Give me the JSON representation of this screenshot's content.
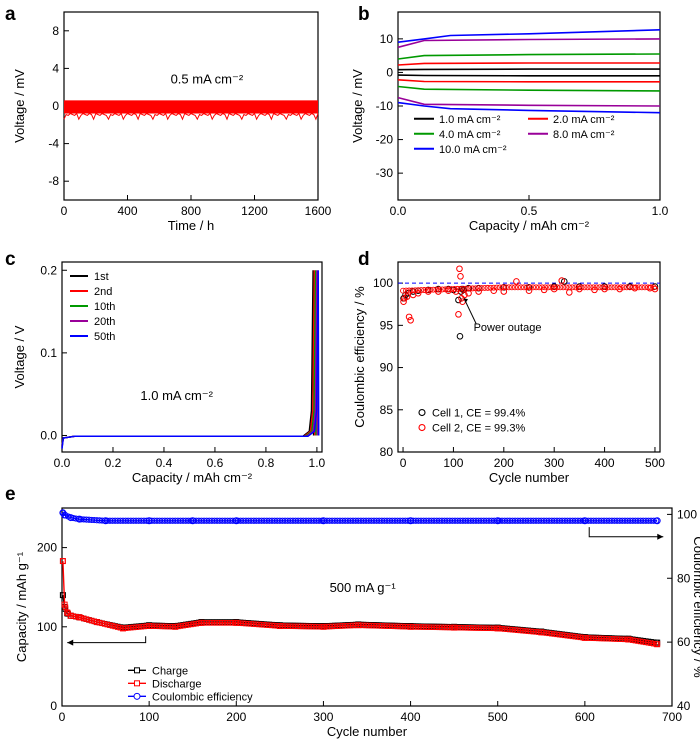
{
  "figure": {
    "panel_letters": [
      "a",
      "b",
      "c",
      "d",
      "e"
    ]
  },
  "chart_data": [
    {
      "panel": "a",
      "type": "line",
      "xlabel": "Time / h",
      "ylabel": "Voltage / mV",
      "xlim": [
        0,
        1600
      ],
      "ylim": [
        -10,
        10
      ],
      "xticks": [
        0,
        400,
        800,
        1200,
        1600
      ],
      "yticks": [
        -8,
        -4,
        0,
        4,
        8
      ],
      "annotation": "0.5 mA cm⁻²",
      "series": [
        {
          "color": "#ff0000",
          "x": [
            0,
            1600
          ],
          "y_upper": [
            0.6,
            0.6
          ],
          "y_lower": [
            -0.8,
            -0.8
          ]
        }
      ]
    },
    {
      "panel": "b",
      "type": "line",
      "xlabel": "Capacity / mAh cm⁻²",
      "ylabel": "Voltage / mV",
      "xlim": [
        0,
        1.0
      ],
      "ylim": [
        -38,
        18
      ],
      "xticks": [
        0,
        0.5,
        1.0
      ],
      "xticklabels": [
        "0.0",
        "0.5",
        "1.0"
      ],
      "yticks": [
        -30,
        -20,
        -10,
        0,
        10
      ],
      "legend_position": "lower-center",
      "series": [
        {
          "name": "1.0 mA cm⁻²",
          "color": "#000000",
          "x": [
            0,
            0.1,
            0.5,
            1.0
          ],
          "y_charge": [
            0.8,
            0.9,
            1.0,
            1.0
          ],
          "y_discharge": [
            -0.8,
            -0.9,
            -1.0,
            -1.0
          ]
        },
        {
          "name": "2.0 mA cm⁻²",
          "color": "#ff0000",
          "x": [
            0,
            0.1,
            0.5,
            1.0
          ],
          "y_charge": [
            2.2,
            2.7,
            2.8,
            2.8
          ],
          "y_discharge": [
            -2.2,
            -2.7,
            -2.8,
            -2.8
          ]
        },
        {
          "name": "4.0 mA cm⁻²",
          "color": "#009900",
          "x": [
            0,
            0.1,
            0.5,
            1.0
          ],
          "y_charge": [
            4.0,
            5.0,
            5.3,
            5.5
          ],
          "y_discharge": [
            -4.2,
            -5.0,
            -5.3,
            -5.5
          ]
        },
        {
          "name": "8.0 mA cm⁻²",
          "color": "#990099",
          "x": [
            0,
            0.1,
            0.5,
            1.0
          ],
          "y_charge": [
            7.5,
            9.5,
            9.8,
            10.0
          ],
          "y_discharge": [
            -7.5,
            -9.5,
            -9.8,
            -10.0
          ]
        },
        {
          "name": "10.0 mA cm⁻²",
          "color": "#0000ff",
          "x": [
            0,
            0.1,
            0.2,
            0.5,
            1.0
          ],
          "y_charge": [
            9.0,
            10.0,
            11.0,
            11.5,
            12.7
          ],
          "y_discharge": [
            -9.0,
            -10.0,
            -10.8,
            -11.3,
            -12.0
          ]
        }
      ]
    },
    {
      "panel": "c",
      "type": "line",
      "xlabel": "Capacity / mAh cm⁻²",
      "ylabel": "Voltage / V",
      "xlim": [
        0,
        1.02
      ],
      "ylim": [
        -0.02,
        0.21
      ],
      "xticks": [
        0,
        0.2,
        0.4,
        0.6,
        0.8,
        1.0
      ],
      "xticklabels": [
        "0.0",
        "0.2",
        "0.4",
        "0.6",
        "0.8",
        "1.0"
      ],
      "yticks": [
        0,
        0.1,
        0.2
      ],
      "yticklabels": [
        "0.0",
        "0.1",
        "0.2"
      ],
      "annotation": "1.0 mA cm⁻²",
      "legend_position": "upper-left",
      "series": [
        {
          "name": "1st",
          "color": "#000000",
          "x_end": 0.985
        },
        {
          "name": "2nd",
          "color": "#ff0000",
          "x_end": 0.99
        },
        {
          "name": "10th",
          "color": "#009900",
          "x_end": 0.995
        },
        {
          "name": "20th",
          "color": "#990099",
          "x_end": 1.0
        },
        {
          "name": "50th",
          "color": "#0000ff",
          "x_end": 1.005
        }
      ]
    },
    {
      "panel": "d",
      "type": "scatter",
      "xlabel": "Cycle number",
      "ylabel": "Coulombic efficiency / %",
      "xlim": [
        -10,
        510
      ],
      "ylim": [
        80,
        102.5
      ],
      "xticks": [
        0,
        100,
        200,
        300,
        400,
        500
      ],
      "yticks": [
        80,
        85,
        90,
        95,
        100
      ],
      "reference_line": 100,
      "annotation": "Power outage",
      "legend_position": "lower-left",
      "series": [
        {
          "name": "Cell 1, CE = 99.4%",
          "color": "#000000",
          "x": [
            1,
            5,
            10,
            20,
            30,
            50,
            70,
            90,
            100,
            110,
            113,
            115,
            117,
            120,
            130,
            150,
            200,
            250,
            300,
            320,
            350,
            400,
            450,
            500
          ],
          "y": [
            98.2,
            98.6,
            98.8,
            99.0,
            99.1,
            99.2,
            99.3,
            99.3,
            99.2,
            98.0,
            93.7,
            99.0,
            99.3,
            99.2,
            99.4,
            99.4,
            99.5,
            99.5,
            99.6,
            100.2,
            99.6,
            99.6,
            99.6,
            99.6
          ]
        },
        {
          "name": "Cell 2, CE = 99.3%",
          "color": "#ff0000",
          "x": [
            1,
            3,
            8,
            12,
            15,
            20,
            30,
            50,
            70,
            90,
            105,
            110,
            112,
            114,
            116,
            118,
            122,
            130,
            150,
            180,
            200,
            225,
            250,
            280,
            300,
            315,
            330,
            350,
            380,
            400,
            430,
            460,
            490,
            500
          ],
          "y": [
            97.8,
            98.2,
            98.4,
            96.0,
            95.6,
            98.6,
            98.8,
            99.0,
            99.0,
            99.1,
            99.0,
            96.3,
            101.7,
            100.8,
            98.2,
            97.8,
            98.6,
            98.8,
            99.0,
            99.1,
            99.0,
            100.2,
            99.1,
            99.2,
            99.3,
            100.3,
            98.9,
            99.3,
            99.2,
            99.3,
            99.3,
            99.4,
            99.4,
            99.3
          ]
        }
      ]
    },
    {
      "panel": "e",
      "type": "scatter",
      "xlabel": "Cycle number",
      "ylabel": "Capacity / mAh g⁻¹",
      "ylabel_right": "Coulombic efficiency / %",
      "xlim": [
        0,
        700
      ],
      "ylim": [
        0,
        250
      ],
      "ylim_right": [
        40,
        102
      ],
      "xticks": [
        0,
        100,
        200,
        300,
        400,
        500,
        600,
        700
      ],
      "yticks": [
        0,
        100,
        200
      ],
      "yticks_right": [
        40,
        60,
        80,
        100
      ],
      "annotation": "500 mA g⁻¹",
      "legend_position": "lower-left",
      "series": [
        {
          "name": "Charge",
          "color": "#000000",
          "axis": "left",
          "x": [
            1,
            3,
            6,
            10,
            20,
            40,
            70,
            100,
            130,
            160,
            200,
            250,
            300,
            340,
            400,
            450,
            500,
            550,
            600,
            650,
            683
          ],
          "y": [
            140,
            125,
            117,
            114,
            112,
            106,
            99,
            102,
            101,
            106,
            106,
            102,
            101,
            103,
            101,
            100,
            99,
            94,
            87,
            85,
            80
          ]
        },
        {
          "name": "Discharge",
          "color": "#ff0000",
          "axis": "left",
          "x": [
            1,
            3,
            6,
            10,
            20,
            40,
            70,
            100,
            130,
            160,
            200,
            250,
            300,
            340,
            400,
            450,
            500,
            550,
            600,
            650,
            683
          ],
          "y": [
            183,
            128,
            118,
            114,
            112,
            106,
            98,
            101,
            100,
            105,
            105,
            101,
            100,
            102,
            100,
            99,
            98,
            93,
            86,
            84,
            78
          ]
        },
        {
          "name": "Coulombic efficiency",
          "color": "#0000ff",
          "axis": "right",
          "x": [
            1,
            3,
            10,
            20,
            50,
            100,
            150,
            200,
            300,
            400,
            500,
            600,
            683
          ],
          "y": [
            100.5,
            99.8,
            99.0,
            98.5,
            98.0,
            98.0,
            98.0,
            98.0,
            98.0,
            98.0,
            98.0,
            98.0,
            98.0
          ]
        }
      ]
    }
  ]
}
